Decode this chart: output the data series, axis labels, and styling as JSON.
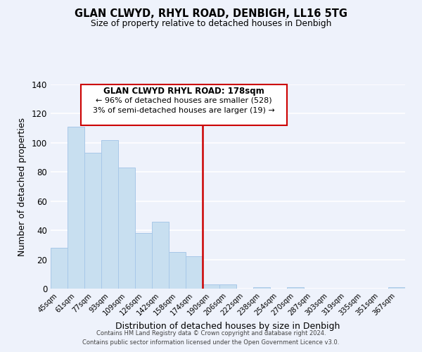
{
  "title": "GLAN CLWYD, RHYL ROAD, DENBIGH, LL16 5TG",
  "subtitle": "Size of property relative to detached houses in Denbigh",
  "xlabel": "Distribution of detached houses by size in Denbigh",
  "ylabel": "Number of detached properties",
  "bar_color": "#c8dff0",
  "bar_edge_color": "#a8c8e8",
  "background_color": "#eef2fb",
  "grid_color": "white",
  "bins": [
    "45sqm",
    "61sqm",
    "77sqm",
    "93sqm",
    "109sqm",
    "126sqm",
    "142sqm",
    "158sqm",
    "174sqm",
    "190sqm",
    "206sqm",
    "222sqm",
    "238sqm",
    "254sqm",
    "270sqm",
    "287sqm",
    "303sqm",
    "319sqm",
    "335sqm",
    "351sqm",
    "367sqm"
  ],
  "values": [
    28,
    111,
    93,
    102,
    83,
    38,
    46,
    25,
    22,
    3,
    3,
    0,
    1,
    0,
    1,
    0,
    0,
    0,
    0,
    0,
    1
  ],
  "ylim": [
    0,
    140
  ],
  "yticks": [
    0,
    20,
    40,
    60,
    80,
    100,
    120,
    140
  ],
  "vline_x": 8.5,
  "vline_color": "#cc0000",
  "annotation_title": "GLAN CLWYD RHYL ROAD: 178sqm",
  "annotation_line1": "← 96% of detached houses are smaller (528)",
  "annotation_line2": "3% of semi-detached houses are larger (19) →",
  "annotation_box_color": "white",
  "annotation_box_edge": "#cc0000",
  "footer_line1": "Contains HM Land Registry data © Crown copyright and database right 2024.",
  "footer_line2": "Contains public sector information licensed under the Open Government Licence v3.0."
}
